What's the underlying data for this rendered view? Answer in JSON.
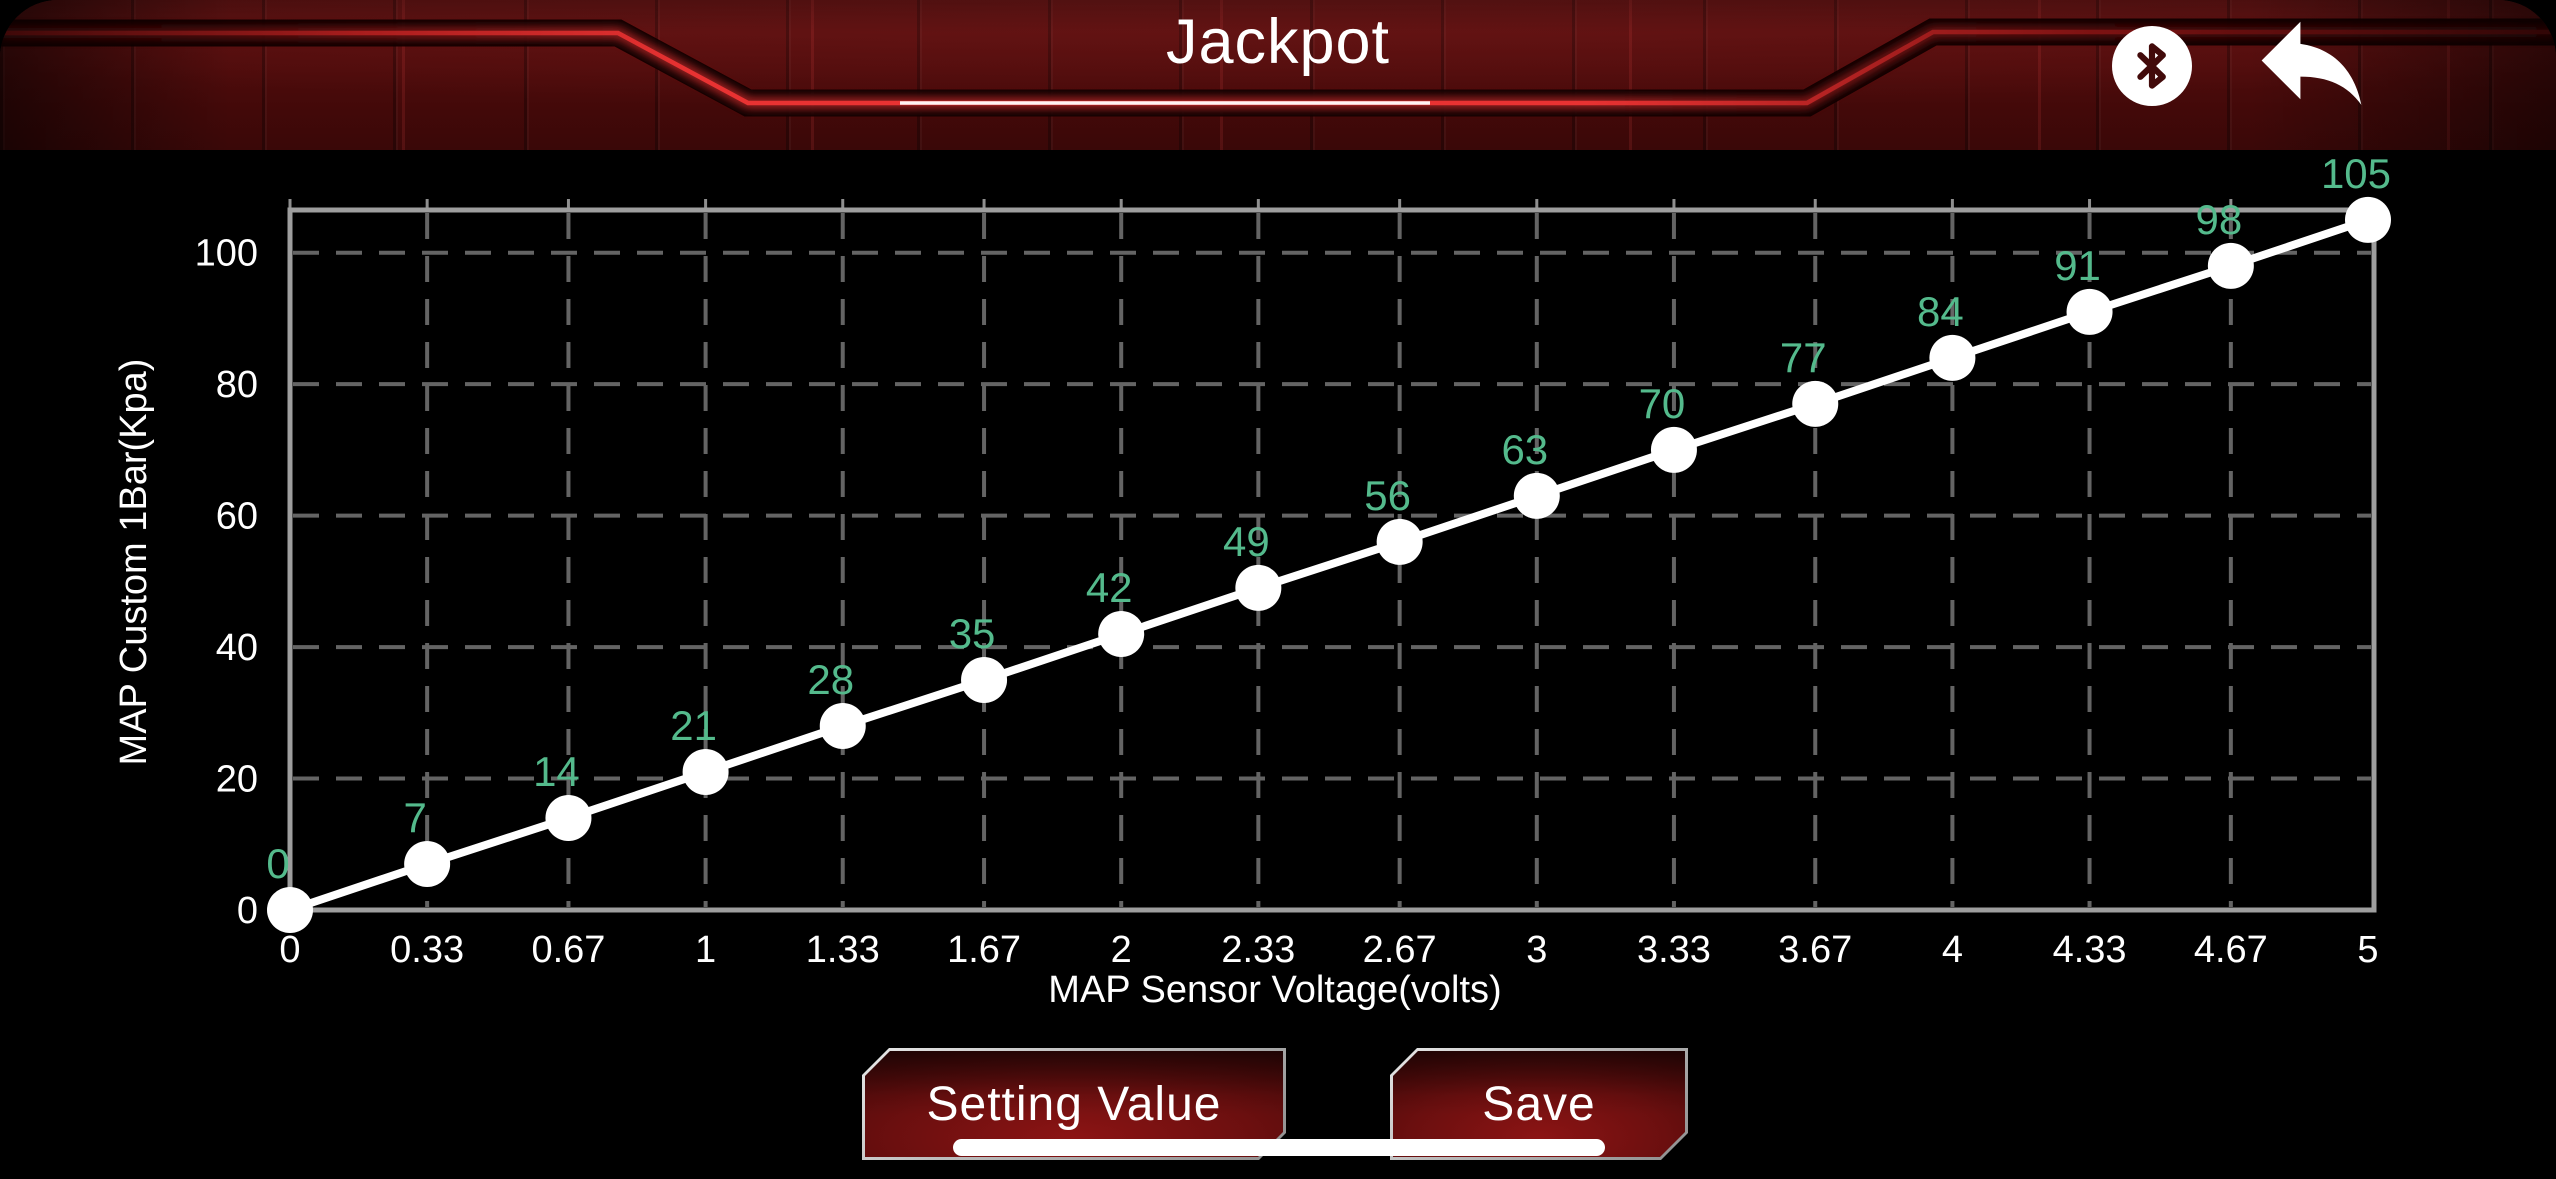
{
  "header": {
    "title": "Jackpot",
    "icons": [
      {
        "name": "bluetooth-icon"
      },
      {
        "name": "back-arrow-icon"
      }
    ]
  },
  "chart_data": {
    "type": "line",
    "x": [
      0,
      0.33,
      0.67,
      1,
      1.33,
      1.67,
      2,
      2.33,
      2.67,
      3,
      3.33,
      3.67,
      4,
      4.33,
      4.67,
      5
    ],
    "x_tick_labels": [
      "0",
      "0.33",
      "0.67",
      "1",
      "1.33",
      "1.67",
      "2",
      "2.33",
      "2.67",
      "3",
      "3.33",
      "3.67",
      "4",
      "4.33",
      "4.67",
      "5"
    ],
    "values": [
      0,
      7,
      14,
      21,
      28,
      35,
      42,
      49,
      56,
      63,
      70,
      77,
      84,
      91,
      98,
      105
    ],
    "y_ticks": [
      0,
      20,
      40,
      60,
      80,
      100
    ],
    "xlabel": "MAP Sensor Voltage(volts)",
    "ylabel": "MAP Custom 1Bar(Kpa)",
    "xlim": [
      0,
      5
    ],
    "ylim": [
      0,
      106.5
    ],
    "grid": "dashed",
    "legend": "none",
    "colors": {
      "line": "#ffffff",
      "point": "#ffffff",
      "point_label": "#54ba8c",
      "grid": "#646464",
      "border": "#9e9e9e",
      "tick_text": "#ffffff"
    }
  },
  "footer": {
    "setting_button_label": "Setting Value",
    "save_button_label": "Save"
  },
  "colors": {
    "background": "#000000",
    "header_red": "#4f0c0c",
    "banner_glow": "#ff3838",
    "button_face": "#6b0f0f",
    "button_border": "#d9d9d9"
  }
}
